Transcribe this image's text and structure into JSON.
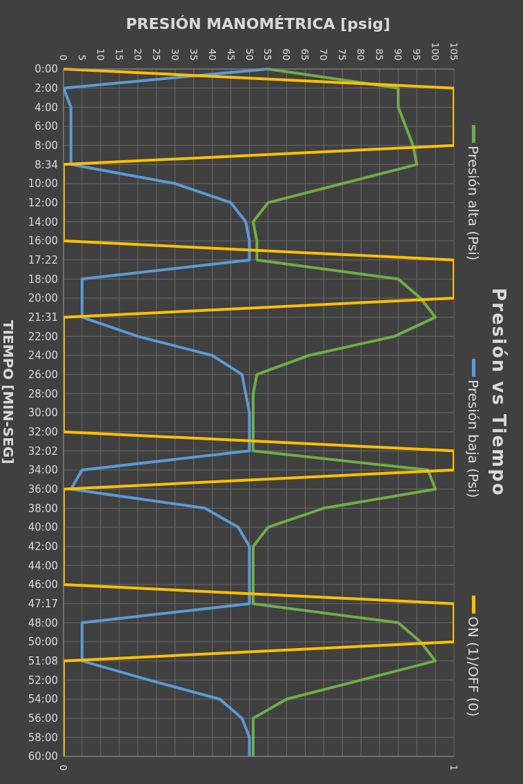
{
  "chart_data": {
    "type": "line",
    "orientation": "horizontal",
    "title": "Presión vs Tiempo",
    "ylabel": "TIEMPO [MIN-SEG]",
    "x2label": "PRESIÓN MANOMÉTRICA [psig]",
    "categories": [
      "0:00",
      "2:00",
      "4:00",
      "6:00",
      "8:00",
      "8:34",
      "10:00",
      "12:00",
      "14:00",
      "16:00",
      "17:22",
      "18:00",
      "20:00",
      "21:31",
      "22:00",
      "24:00",
      "26:00",
      "28:00",
      "30:00",
      "32:00",
      "32:02",
      "34:00",
      "36:00",
      "38:00",
      "40:00",
      "42:00",
      "44:00",
      "46:00",
      "47:17",
      "48:00",
      "50:00",
      "51:08",
      "52:00",
      "54:00",
      "56:00",
      "58:00",
      "60:00"
    ],
    "series": [
      {
        "name": "Presión alta (Psi)",
        "color": "#70ad47",
        "axis": "x2",
        "values": [
          55,
          90,
          90,
          92,
          94,
          95,
          75,
          55,
          51,
          52,
          52,
          90,
          96,
          100,
          89,
          66,
          52,
          51,
          51,
          51,
          51,
          98,
          100,
          70,
          55,
          51,
          51,
          51,
          51,
          90,
          96,
          100,
          80,
          60,
          51,
          51,
          51
        ]
      },
      {
        "name": "Presión baja (Psi)",
        "color": "#5b9bd5",
        "axis": "x2",
        "values": [
          55,
          0,
          2,
          2,
          2,
          2,
          30,
          45,
          49,
          50,
          50,
          5,
          5,
          5,
          20,
          40,
          48,
          49,
          50,
          50,
          50,
          5,
          2,
          38,
          47,
          50,
          50,
          50,
          50,
          5,
          5,
          5,
          23,
          42,
          48,
          50,
          50
        ]
      },
      {
        "name": "ON (1)/OFF (0)",
        "color": "#ffc000",
        "values": [
          0,
          1,
          1,
          1,
          1,
          0,
          0,
          0,
          0,
          0,
          1,
          1,
          1,
          0,
          0,
          0,
          0,
          0,
          0,
          0,
          1,
          1,
          0,
          0,
          0,
          0,
          0,
          0,
          1,
          1,
          1,
          0,
          0,
          0,
          0,
          0,
          0
        ]
      }
    ],
    "x2lim": [
      0,
      105
    ],
    "x2ticks": [
      0,
      5,
      10,
      15,
      20,
      25,
      30,
      35,
      40,
      45,
      50,
      55,
      60,
      65,
      70,
      75,
      80,
      85,
      90,
      95,
      100,
      105
    ],
    "xlim": [
      0,
      1
    ],
    "xticks": [
      0,
      1
    ],
    "grid": true,
    "legend": "right",
    "marker": "none",
    "line_style": "solid"
  }
}
